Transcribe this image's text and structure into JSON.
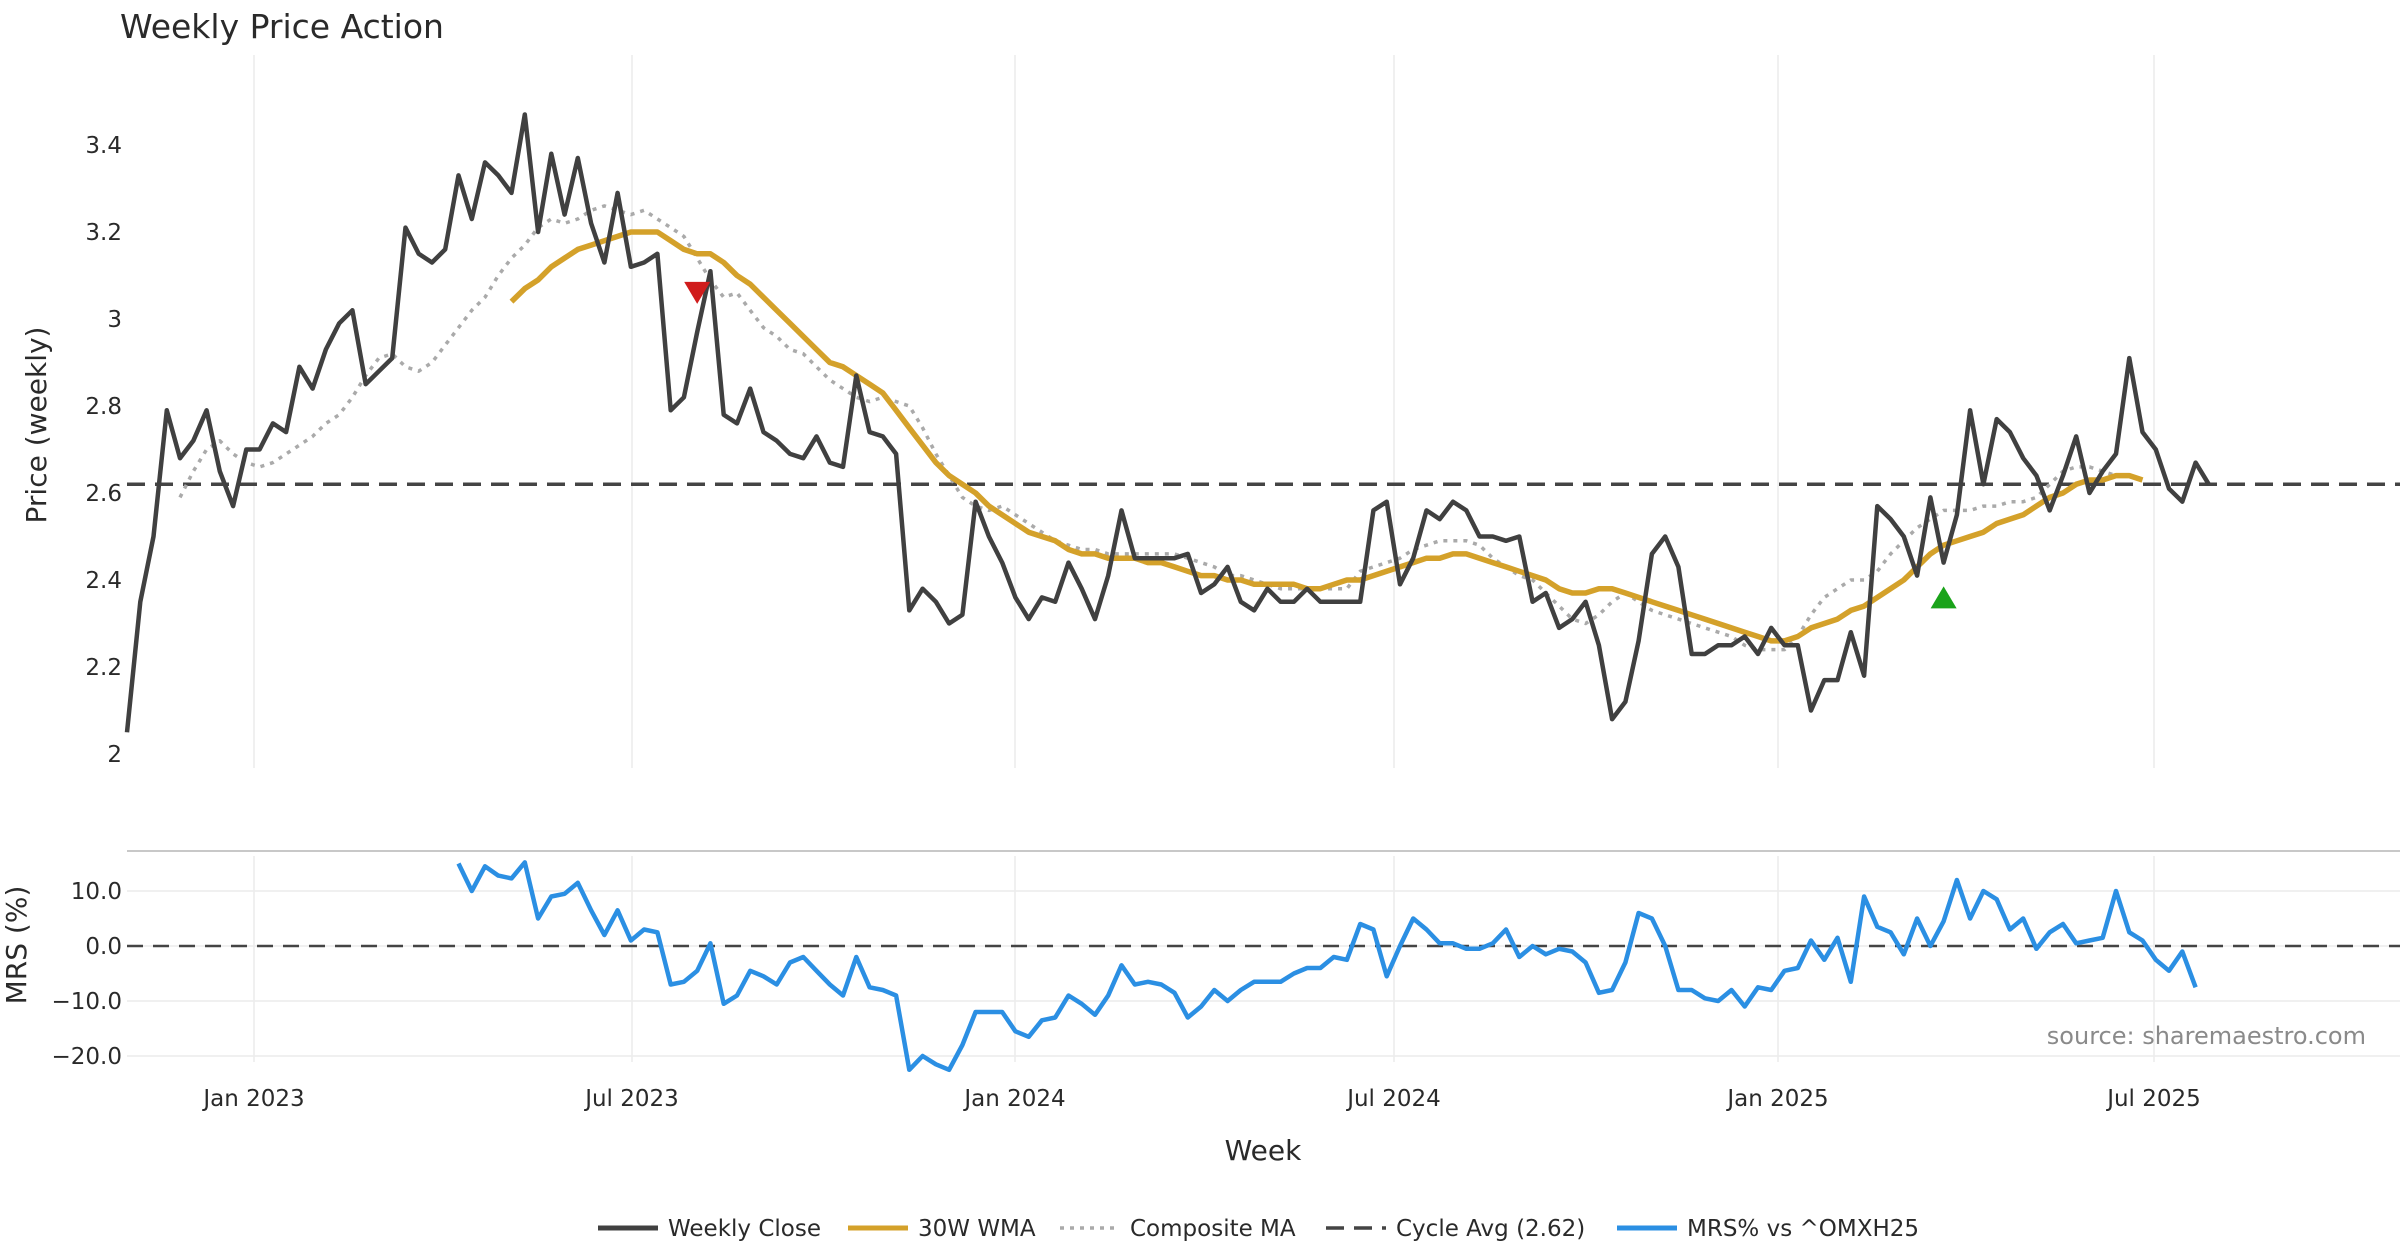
{
  "chart_data": {
    "type": "line",
    "title": "Weekly Price Action",
    "source_text": "source: sharemaestro.com",
    "colors": {
      "close": "#404040",
      "wma": "#d4a12a",
      "composite": "#aaaaaa",
      "cycle": "#444444",
      "mrs": "#2b8fe3",
      "sell_marker": "#d01c1c",
      "buy_marker": "#1aa31a",
      "grid": "#ececec"
    },
    "x_ticks": [
      "Jan 2023",
      "Jul 2023",
      "Jan 2024",
      "Jul 2024",
      "Jan 2025",
      "Jul 2025"
    ],
    "xlabel": "Week",
    "price_panel": {
      "ylabel": "Price (weekly)",
      "ylim": [
        2.0,
        3.58
      ],
      "y_ticks": [
        "2",
        "2.2",
        "2.4",
        "2.6",
        "2.8",
        "3",
        "3.2",
        "3.4"
      ],
      "cycle_avg": 2.62,
      "series": [
        {
          "name": "Weekly Close",
          "values": [
            2.05,
            2.35,
            2.5,
            2.79,
            2.68,
            2.72,
            2.79,
            2.65,
            2.57,
            2.7,
            2.7,
            2.76,
            2.74,
            2.89,
            2.84,
            2.93,
            2.99,
            3.02,
            2.85,
            2.88,
            2.91,
            3.21,
            3.15,
            3.13,
            3.16,
            3.33,
            3.23,
            3.36,
            3.33,
            3.29,
            3.47,
            3.2,
            3.38,
            3.24,
            3.37,
            3.22,
            3.13,
            3.29,
            3.12,
            3.13,
            3.15,
            2.79,
            2.82,
            2.97,
            3.11,
            2.78,
            2.76,
            2.84,
            2.74,
            2.72,
            2.69,
            2.68,
            2.73,
            2.67,
            2.66,
            2.87,
            2.74,
            2.73,
            2.69,
            2.33,
            2.38,
            2.35,
            2.3,
            2.32,
            2.58,
            2.5,
            2.44,
            2.36,
            2.31,
            2.36,
            2.35,
            2.44,
            2.38,
            2.31,
            2.41,
            2.56,
            2.45,
            2.45,
            2.45,
            2.45,
            2.46,
            2.37,
            2.39,
            2.43,
            2.35,
            2.33,
            2.38,
            2.35,
            2.35,
            2.38,
            2.35,
            2.35,
            2.35,
            2.35,
            2.56,
            2.58,
            2.39,
            2.45,
            2.56,
            2.54,
            2.58,
            2.56,
            2.5,
            2.5,
            2.49,
            2.5,
            2.35,
            2.37,
            2.29,
            2.31,
            2.35,
            2.25,
            2.08,
            2.12,
            2.26,
            2.46,
            2.5,
            2.43,
            2.23,
            2.23,
            2.25,
            2.25,
            2.27,
            2.23,
            2.29,
            2.25,
            2.25,
            2.1,
            2.17,
            2.17,
            2.28,
            2.18,
            2.57,
            2.54,
            2.5,
            2.41,
            2.59,
            2.44,
            2.55,
            2.79,
            2.62,
            2.77,
            2.74,
            2.68,
            2.64,
            2.56,
            2.64,
            2.73,
            2.6,
            2.65,
            2.69,
            2.91,
            2.74,
            2.7,
            2.61,
            2.58,
            2.67,
            2.62
          ]
        },
        {
          "name": "30W WMA",
          "start_index": 29,
          "values": [
            3.04,
            3.07,
            3.09,
            3.12,
            3.14,
            3.16,
            3.17,
            3.18,
            3.19,
            3.2,
            3.2,
            3.2,
            3.18,
            3.16,
            3.15,
            3.15,
            3.13,
            3.1,
            3.08,
            3.05,
            3.02,
            2.99,
            2.96,
            2.93,
            2.9,
            2.89,
            2.87,
            2.85,
            2.83,
            2.79,
            2.75,
            2.71,
            2.67,
            2.64,
            2.62,
            2.6,
            2.57,
            2.55,
            2.53,
            2.51,
            2.5,
            2.49,
            2.47,
            2.46,
            2.46,
            2.45,
            2.45,
            2.45,
            2.44,
            2.44,
            2.43,
            2.42,
            2.41,
            2.41,
            2.4,
            2.4,
            2.39,
            2.39,
            2.39,
            2.39,
            2.38,
            2.38,
            2.39,
            2.4,
            2.4,
            2.41,
            2.42,
            2.43,
            2.44,
            2.45,
            2.45,
            2.46,
            2.46,
            2.45,
            2.44,
            2.43,
            2.42,
            2.41,
            2.4,
            2.38,
            2.37,
            2.37,
            2.38,
            2.38,
            2.37,
            2.36,
            2.35,
            2.34,
            2.33,
            2.32,
            2.31,
            2.3,
            2.29,
            2.28,
            2.27,
            2.26,
            2.26,
            2.27,
            2.29,
            2.3,
            2.31,
            2.33,
            2.34,
            2.36,
            2.38,
            2.4,
            2.43,
            2.46,
            2.48,
            2.49,
            2.5,
            2.51,
            2.53,
            2.54,
            2.55,
            2.57,
            2.59,
            2.6,
            2.62,
            2.63,
            2.63,
            2.64,
            2.64,
            2.63
          ]
        },
        {
          "name": "Composite MA",
          "start_index": 4,
          "values": [
            2.59,
            2.65,
            2.7,
            2.72,
            2.69,
            2.67,
            2.66,
            2.67,
            2.69,
            2.71,
            2.73,
            2.76,
            2.78,
            2.82,
            2.87,
            2.91,
            2.92,
            2.89,
            2.88,
            2.9,
            2.94,
            2.98,
            3.02,
            3.05,
            3.1,
            3.14,
            3.17,
            3.21,
            3.23,
            3.22,
            3.23,
            3.25,
            3.26,
            3.25,
            3.24,
            3.25,
            3.23,
            3.21,
            3.19,
            3.14,
            3.09,
            3.05,
            3.06,
            3.02,
            2.98,
            2.96,
            2.93,
            2.92,
            2.89,
            2.86,
            2.84,
            2.82,
            2.81,
            2.82,
            2.81,
            2.8,
            2.75,
            2.69,
            2.64,
            2.59,
            2.57,
            2.56,
            2.57,
            2.55,
            2.53,
            2.51,
            2.49,
            2.48,
            2.47,
            2.47,
            2.46,
            2.46,
            2.46,
            2.46,
            2.46,
            2.46,
            2.45,
            2.44,
            2.43,
            2.41,
            2.41,
            2.4,
            2.39,
            2.38,
            2.38,
            2.38,
            2.38,
            2.38,
            2.38,
            2.42,
            2.43,
            2.44,
            2.45,
            2.47,
            2.48,
            2.49,
            2.49,
            2.49,
            2.48,
            2.45,
            2.43,
            2.41,
            2.4,
            2.37,
            2.34,
            2.31,
            2.3,
            2.32,
            2.35,
            2.37,
            2.35,
            2.33,
            2.32,
            2.31,
            2.3,
            2.29,
            2.28,
            2.27,
            2.25,
            2.24,
            2.24,
            2.24,
            2.27,
            2.32,
            2.36,
            2.38,
            2.4,
            2.4,
            2.42,
            2.46,
            2.49,
            2.52,
            2.54,
            2.56,
            2.56,
            2.56,
            2.57,
            2.57,
            2.58,
            2.58,
            2.59,
            2.62,
            2.65,
            2.66,
            2.66,
            2.65,
            2.64
          ]
        }
      ],
      "markers": [
        {
          "type": "sell",
          "index": 43,
          "value": 3.06
        },
        {
          "type": "buy",
          "index": 137,
          "value": 2.36
        }
      ]
    },
    "mrs_panel": {
      "ylabel": "MRS (%)",
      "ylim": [
        -22.5,
        16.0
      ],
      "y_ticks": [
        "10.0",
        "0.0",
        "−10.0",
        "−20.0"
      ],
      "y_tick_values": [
        10,
        0,
        -10,
        -20
      ],
      "zero_line": 0,
      "series": [
        {
          "name": "MRS% vs ^OMXH25",
          "start_index": 25,
          "values": [
            15,
            10,
            14.5,
            12.8,
            12.3,
            15.2,
            5,
            9,
            9.5,
            11.5,
            6.5,
            2,
            6.5,
            1,
            3,
            2.5,
            -7,
            -6.5,
            -4.5,
            0.5,
            -10.5,
            -9,
            -4.5,
            -5.5,
            -7,
            -3,
            -2,
            -4.5,
            -7,
            -9,
            -2,
            -7.5,
            -8,
            -9,
            -22.5,
            -20,
            -21.5,
            -22.5,
            -18,
            -12,
            -12,
            -12,
            -15.5,
            -16.5,
            -13.5,
            -13,
            -9,
            -10.5,
            -12.5,
            -9,
            -3.5,
            -7,
            -6.5,
            -7,
            -8.5,
            -13,
            -11,
            -8,
            -10,
            -8,
            -6.5,
            -6.5,
            -6.5,
            -5,
            -4,
            -4,
            -2,
            -2.5,
            4,
            3,
            -5.5,
            0,
            5,
            3,
            0.5,
            0.5,
            -0.5,
            -0.5,
            0.5,
            3,
            -2,
            0,
            -1.5,
            -0.5,
            -1,
            -3,
            -8.5,
            -8,
            -3,
            6,
            5,
            0,
            -8,
            -8,
            -9.5,
            -10,
            -8,
            -11,
            -7.5,
            -8,
            -4.5,
            -4,
            1,
            -2.5,
            1.5,
            -6.5,
            9,
            3.5,
            2.5,
            -1.5,
            5,
            0,
            4.5,
            12,
            5,
            10,
            8.5,
            3,
            5,
            -0.5,
            2.5,
            4,
            0.5,
            1,
            1.5,
            10,
            2.5,
            1,
            -2.5,
            -4.5,
            -1,
            -7.5
          ]
        }
      ]
    },
    "legend": [
      {
        "label": "Weekly Close",
        "style": "solid",
        "color_key": "close"
      },
      {
        "label": "30W WMA",
        "style": "solid",
        "color_key": "wma"
      },
      {
        "label": "Composite MA",
        "style": "dotted",
        "color_key": "composite"
      },
      {
        "label": "Cycle Avg (2.62)",
        "style": "dashed",
        "color_key": "cycle"
      },
      {
        "label": "MRS% vs ^OMXH25",
        "style": "solid",
        "color_key": "mrs"
      }
    ]
  }
}
